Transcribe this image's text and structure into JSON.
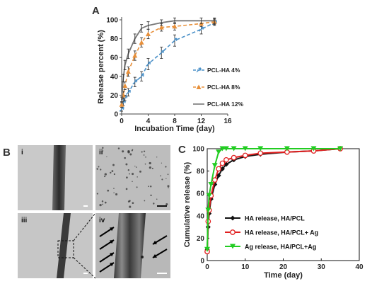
{
  "panels": {
    "a": "A",
    "b": "B",
    "c": "C"
  },
  "micrographs": {
    "labels": [
      "i",
      "ii",
      "iii",
      "iv"
    ]
  },
  "chart_data": [
    {
      "id": "A",
      "type": "line",
      "xlabel": "Incubation Time (day)",
      "ylabel": "Release percent (%)",
      "xlim": [
        0,
        16
      ],
      "ylim": [
        0,
        100
      ],
      "xticks": [
        0,
        4,
        8,
        12,
        16
      ],
      "yticks": [
        0,
        20,
        40,
        60,
        80,
        100
      ],
      "legend_position": "bottom-right",
      "x": [
        0,
        0.25,
        0.5,
        1,
        2,
        3,
        4,
        6,
        8,
        12,
        14
      ],
      "series": [
        {
          "name": "PCL-HA 4%",
          "color": "#4a90c8",
          "marker": "arrow",
          "dashed": true,
          "values": [
            5,
            12,
            17,
            23,
            34,
            40,
            53,
            65,
            78,
            90,
            97
          ],
          "errors": [
            2,
            3,
            3,
            4,
            5,
            5,
            6,
            6,
            6,
            5,
            3
          ]
        },
        {
          "name": "PCL-HA 8%",
          "color": "#e8903a",
          "marker": "triangle",
          "dashed": true,
          "values": [
            10,
            20,
            30,
            45,
            62,
            76,
            85,
            92,
            93,
            96,
            98
          ],
          "errors": [
            3,
            4,
            4,
            5,
            5,
            5,
            5,
            4,
            4,
            3,
            3
          ]
        },
        {
          "name": "PCL-HA 12%",
          "color": "#777777",
          "marker": "none",
          "dashed": false,
          "values": [
            15,
            38,
            52,
            64,
            80,
            91,
            94,
            97,
            99,
            99,
            99
          ],
          "errors": [
            3,
            4,
            5,
            5,
            5,
            4,
            4,
            3,
            3,
            3,
            3
          ]
        }
      ]
    },
    {
      "id": "C",
      "type": "line",
      "xlabel": "Time (day)",
      "ylabel": "Cumulative release (%)",
      "xlim": [
        0,
        40
      ],
      "ylim": [
        0,
        100
      ],
      "xticks": [
        0,
        10,
        20,
        30,
        40
      ],
      "yticks": [
        0,
        20,
        40,
        60,
        80,
        100
      ],
      "legend_position": "bottom-right",
      "series": [
        {
          "name": "HA release, HA/PCL",
          "color": "#111111",
          "marker": "diamond",
          "x": [
            0,
            0.25,
            0.5,
            1,
            2,
            3,
            4,
            5,
            7,
            10,
            14,
            21,
            28,
            35
          ],
          "y": [
            10,
            30,
            42,
            55,
            68,
            76,
            82,
            86,
            90,
            93,
            95,
            97,
            98,
            100
          ]
        },
        {
          "name": "HA release, HA/PCL+ Ag",
          "color": "#e02020",
          "marker": "open-circle",
          "x": [
            0,
            0.25,
            0.5,
            1,
            2,
            3,
            4,
            5,
            7,
            10,
            14,
            21,
            28,
            35
          ],
          "y": [
            8,
            35,
            45,
            58,
            72,
            82,
            87,
            90,
            92,
            94,
            96,
            97,
            98,
            100
          ]
        },
        {
          "name": "Ag release, HA/PCL+Ag",
          "color": "#22cc22",
          "marker": "triangle-down",
          "x": [
            0,
            0.25,
            0.5,
            1,
            2,
            3,
            4,
            5,
            7,
            10,
            14,
            21,
            28,
            35
          ],
          "y": [
            10,
            45,
            58,
            68,
            85,
            97,
            100,
            100,
            100,
            100,
            100,
            100,
            100,
            100
          ]
        }
      ]
    }
  ]
}
